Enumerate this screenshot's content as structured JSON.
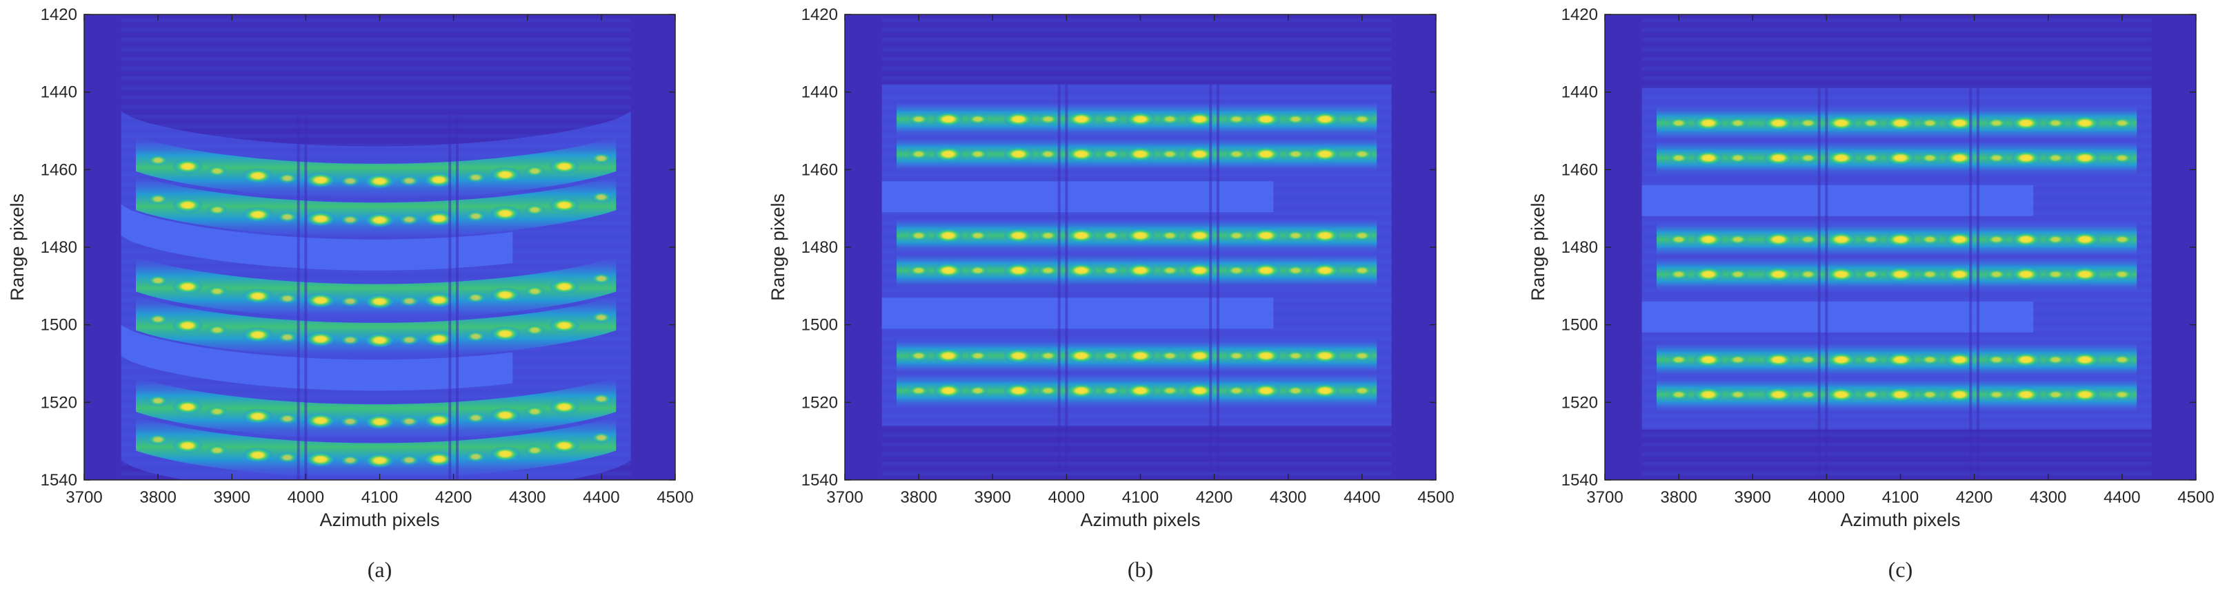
{
  "colors": {
    "background": "#3e2eb8",
    "band": "#4a63ee",
    "mid": "#1fa9d4",
    "green": "#3fcf6f",
    "yellow": "#f7e23a",
    "axis": "#262626"
  },
  "chart_data": [
    {
      "type": "heatmap",
      "panel": "a",
      "caption": "(a)",
      "xlabel": "Azimuth pixels",
      "ylabel": "Range pixels",
      "xlim": [
        3700,
        4500
      ],
      "ylim": [
        1420,
        1540
      ],
      "y_reversed": true,
      "xticks": [
        3700,
        3800,
        3900,
        4000,
        4100,
        4200,
        4300,
        4400,
        4500
      ],
      "yticks": [
        1420,
        1440,
        1460,
        1480,
        1500,
        1520,
        1540
      ],
      "target_x_extent": [
        3750,
        4440
      ],
      "curvature": "bowed",
      "bright_rows": [
        1454,
        1464,
        1485,
        1495,
        1516,
        1526
      ],
      "dim_rows": [
        1473,
        1504
      ]
    },
    {
      "type": "heatmap",
      "panel": "b",
      "caption": "(b)",
      "xlabel": "Azimuth pixels",
      "ylabel": "Range pixels",
      "xlim": [
        3700,
        4500
      ],
      "ylim": [
        1420,
        1540
      ],
      "y_reversed": true,
      "xticks": [
        3700,
        3800,
        3900,
        4000,
        4100,
        4200,
        4300,
        4400,
        4500
      ],
      "yticks": [
        1420,
        1440,
        1460,
        1480,
        1500,
        1520,
        1540
      ],
      "target_x_extent": [
        3750,
        4440
      ],
      "curvature": "straight",
      "bright_rows": [
        1447,
        1456,
        1477,
        1486,
        1508,
        1517
      ],
      "dim_rows": [
        1467,
        1497
      ]
    },
    {
      "type": "heatmap",
      "panel": "c",
      "caption": "(c)",
      "xlabel": "Azimuth pixels",
      "ylabel": "Range pixels",
      "xlim": [
        3700,
        4500
      ],
      "ylim": [
        1420,
        1540
      ],
      "y_reversed": true,
      "xticks": [
        3700,
        3800,
        3900,
        4000,
        4100,
        4200,
        4300,
        4400,
        4500
      ],
      "yticks": [
        1420,
        1440,
        1460,
        1480,
        1500,
        1520,
        1540
      ],
      "target_x_extent": [
        3750,
        4440
      ],
      "curvature": "straight",
      "bright_rows": [
        1448,
        1457,
        1478,
        1487,
        1509,
        1518
      ],
      "dim_rows": [
        1468,
        1498
      ]
    }
  ]
}
